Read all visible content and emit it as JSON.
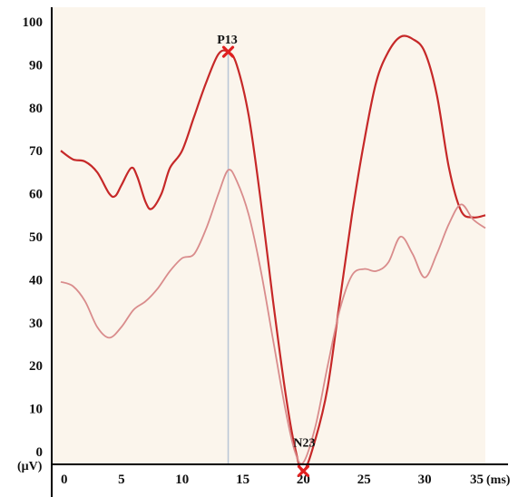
{
  "chart_data": {
    "type": "line",
    "title": "",
    "xlabel": "",
    "ylabel": "",
    "x_unit": "(ms)",
    "y_unit": "(μV)",
    "xlim": [
      0,
      35
    ],
    "ylim": [
      -5,
      100
    ],
    "x_ticks": [
      0,
      5,
      10,
      15,
      20,
      25,
      30,
      35
    ],
    "x_tick_labels": [
      "0",
      "5",
      "10",
      "15",
      "20",
      "25",
      "30",
      "35"
    ],
    "y_ticks": [
      0,
      10,
      20,
      30,
      40,
      50,
      60,
      70,
      80,
      90,
      100
    ],
    "y_tick_labels": [
      "0",
      "10",
      "20",
      "30",
      "40",
      "50",
      "60",
      "70",
      "80",
      "90",
      "100"
    ],
    "grid": false,
    "background_color": "#fbf5ec",
    "series": [
      {
        "color": "#c62828",
        "points": [
          [
            0,
            70
          ],
          [
            1,
            68
          ],
          [
            2,
            67.5
          ],
          [
            3,
            65
          ],
          [
            4,
            60
          ],
          [
            4.5,
            59.5
          ],
          [
            5,
            62
          ],
          [
            5.8,
            66
          ],
          [
            6.3,
            64
          ],
          [
            7,
            58
          ],
          [
            7.5,
            56.5
          ],
          [
            8.3,
            60
          ],
          [
            9,
            66
          ],
          [
            10,
            70
          ],
          [
            11,
            78
          ],
          [
            12,
            86
          ],
          [
            13,
            92.5
          ],
          [
            13.8,
            93
          ],
          [
            14.5,
            90
          ],
          [
            15.5,
            78
          ],
          [
            16.5,
            58
          ],
          [
            17.5,
            35
          ],
          [
            18.5,
            14
          ],
          [
            19.3,
            1
          ],
          [
            20,
            -4.5
          ],
          [
            21,
            3
          ],
          [
            22,
            15
          ],
          [
            23,
            35
          ],
          [
            24,
            55
          ],
          [
            25,
            72
          ],
          [
            26,
            86
          ],
          [
            27,
            93
          ],
          [
            28,
            96.5
          ],
          [
            29,
            96
          ],
          [
            30,
            93
          ],
          [
            31,
            83
          ],
          [
            32,
            66
          ],
          [
            33,
            56
          ],
          [
            34,
            54.5
          ],
          [
            35,
            55
          ]
        ]
      },
      {
        "color": "#d98c8c",
        "points": [
          [
            0,
            39.5
          ],
          [
            1,
            38.5
          ],
          [
            2,
            35
          ],
          [
            3,
            29
          ],
          [
            4,
            26.5
          ],
          [
            5,
            29
          ],
          [
            6,
            33
          ],
          [
            7,
            35
          ],
          [
            8,
            38
          ],
          [
            9,
            42
          ],
          [
            10,
            45
          ],
          [
            11,
            46
          ],
          [
            12,
            52
          ],
          [
            13,
            60
          ],
          [
            13.8,
            65.5
          ],
          [
            14.5,
            63
          ],
          [
            15.5,
            55
          ],
          [
            16.5,
            42
          ],
          [
            17.5,
            26
          ],
          [
            18.5,
            10
          ],
          [
            19.3,
            0
          ],
          [
            20,
            -2.5
          ],
          [
            21,
            6
          ],
          [
            22,
            20
          ],
          [
            23,
            33
          ],
          [
            24,
            41
          ],
          [
            25,
            42.5
          ],
          [
            26,
            42
          ],
          [
            27,
            44
          ],
          [
            28,
            50
          ],
          [
            29,
            46
          ],
          [
            30,
            40.5
          ],
          [
            31,
            46
          ],
          [
            32,
            53
          ],
          [
            33,
            57.5
          ],
          [
            34,
            54
          ],
          [
            35,
            52
          ]
        ]
      }
    ],
    "annotations": [
      {
        "label": "P13",
        "x": 13.8,
        "y": 93,
        "marker_color": "#e02020"
      },
      {
        "label": "N23",
        "x": 20,
        "y": -4.5,
        "marker_color": "#e02020"
      }
    ],
    "reference_line": {
      "x": 13.8,
      "color": "#b9c6d6"
    }
  }
}
